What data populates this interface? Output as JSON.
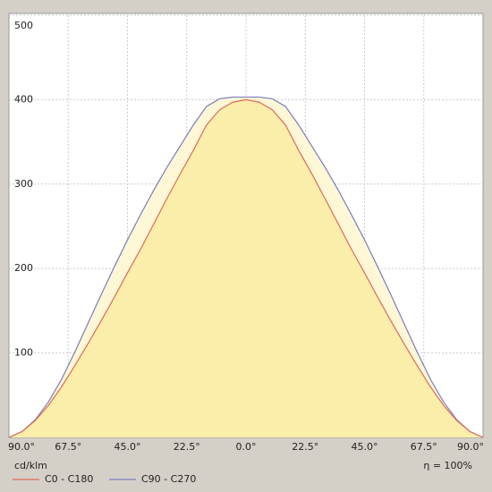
{
  "chart_data": {
    "type": "line",
    "x": [
      -90,
      -85,
      -80,
      -75,
      -70,
      -65,
      -60,
      -55,
      -50,
      -45,
      -40,
      -35,
      -30,
      -25,
      -20,
      -15,
      -10,
      -5,
      0,
      5,
      10,
      15,
      20,
      25,
      30,
      35,
      40,
      45,
      50,
      55,
      60,
      65,
      70,
      75,
      80,
      85,
      90
    ],
    "series": [
      {
        "name": "C0 - C180",
        "color": "#e06a5a",
        "fill": "#fbeeaa",
        "values": [
          0,
          7,
          20,
          38,
          60,
          85,
          111,
          138,
          166,
          195,
          223,
          253,
          283,
          312,
          340,
          370,
          388,
          397,
          400,
          397,
          388,
          370,
          340,
          312,
          283,
          253,
          223,
          195,
          166,
          138,
          111,
          85,
          60,
          38,
          20,
          7,
          0
        ]
      },
      {
        "name": "C90 - C270",
        "color": "#7b7bbf",
        "fill": "#fdf7d6",
        "values": [
          0,
          7,
          21,
          42,
          69,
          101,
          135,
          169,
          202,
          234,
          264,
          293,
          320,
          345,
          370,
          392,
          401,
          403,
          403,
          403,
          401,
          392,
          370,
          345,
          320,
          293,
          264,
          234,
          202,
          169,
          135,
          101,
          69,
          42,
          21,
          7,
          0
        ]
      }
    ],
    "xlim": [
      -90,
      90
    ],
    "xticks": [
      {
        "value": -90,
        "label": "90.0°"
      },
      {
        "value": -67.5,
        "label": "67.5°"
      },
      {
        "value": -45,
        "label": "45.0°"
      },
      {
        "value": -22.5,
        "label": "22.5°"
      },
      {
        "value": 0,
        "label": "0.0°"
      },
      {
        "value": 22.5,
        "label": "22.5°"
      },
      {
        "value": 45,
        "label": "45.0°"
      },
      {
        "value": 67.5,
        "label": "67.5°"
      },
      {
        "value": 90,
        "label": "90.0°"
      }
    ],
    "ylim": [
      0,
      500
    ],
    "yticks": [
      100,
      200,
      300,
      400,
      500
    ],
    "grid": true,
    "unit_label": "cd/klm",
    "efficiency_label": "η =  100%"
  }
}
